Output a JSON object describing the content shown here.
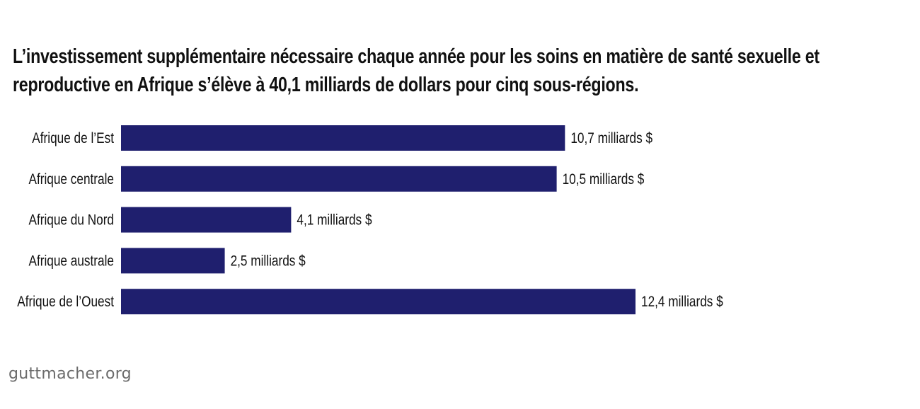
{
  "chart_data": {
    "type": "bar",
    "orientation": "horizontal",
    "title": "L’investissement supplémentaire nécessaire chaque année pour les soins en matière de santé sexuelle et reproductive en Afrique s’élève à 40,1 milliards de dollars pour cinq sous-régions.",
    "categories": [
      "Afrique de l’Est",
      "Afrique centrale",
      "Afrique du Nord",
      "Afrique australe",
      "Afrique de l’Ouest"
    ],
    "values": [
      10.7,
      10.5,
      4.1,
      2.5,
      12.4
    ],
    "data_labels": [
      "10,7 milliards $",
      "10,5 milliards $",
      "4,1 milliards $",
      "2,5 milliards $",
      "12,4 milliards $"
    ],
    "unit": "milliards $",
    "xlim": [
      0,
      12.4
    ],
    "grid": false,
    "bar_color": "#1f1f6e"
  },
  "source": "guttmacher.org"
}
